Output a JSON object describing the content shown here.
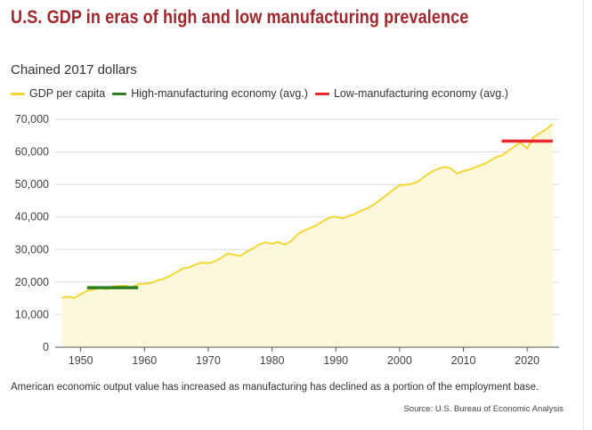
{
  "header": {
    "title": "U.S. GDP in eras of high and low manufacturing prevalence",
    "subtitle": "Chained 2017 dollars"
  },
  "legend": {
    "items": [
      {
        "label": "GDP per capita",
        "color": "#f5d733"
      },
      {
        "label": "High-manufacturing economy (avg.)",
        "color": "#2e7d1e"
      },
      {
        "label": "Low-manufacturing economy (avg.)",
        "color": "#e8282b"
      }
    ]
  },
  "footer": {
    "note": "American economic output value has increased as manufacturing has declined as a portion of the employment base.",
    "source": "Source: U.S. Bureau of Economic Analysis"
  },
  "chart_data": {
    "type": "area",
    "title": "U.S. GDP in eras of high and low manufacturing prevalence",
    "subtitle": "Chained 2017 dollars",
    "xlim": [
      1946,
      2025
    ],
    "ylim": [
      0,
      70000
    ],
    "x_ticks": [
      1950,
      1960,
      1970,
      1980,
      1990,
      2000,
      2010,
      2020
    ],
    "y_ticks": [
      0,
      10000,
      20000,
      30000,
      40000,
      50000,
      60000,
      70000
    ],
    "y_tick_labels": [
      "0",
      "10,000",
      "20,000",
      "30,000",
      "40,000",
      "50,000",
      "60,000",
      "70,000"
    ],
    "grid": "horizontal",
    "series": [
      {
        "name": "GDP per capita",
        "color": "#f5d733",
        "x": [
          1947,
          1948,
          1949,
          1950,
          1951,
          1952,
          1953,
          1954,
          1955,
          1956,
          1957,
          1958,
          1959,
          1960,
          1961,
          1962,
          1963,
          1964,
          1965,
          1966,
          1967,
          1968,
          1969,
          1970,
          1971,
          1972,
          1973,
          1974,
          1975,
          1976,
          1977,
          1978,
          1979,
          1980,
          1981,
          1982,
          1983,
          1984,
          1985,
          1986,
          1987,
          1988,
          1989,
          1990,
          1991,
          1992,
          1993,
          1994,
          1995,
          1996,
          1997,
          1998,
          1999,
          2000,
          2001,
          2002,
          2003,
          2004,
          2005,
          2006,
          2007,
          2008,
          2009,
          2010,
          2011,
          2012,
          2013,
          2014,
          2015,
          2016,
          2017,
          2018,
          2019,
          2020,
          2021,
          2022,
          2023,
          2024
        ],
        "y": [
          15200,
          15500,
          15100,
          16300,
          17300,
          17700,
          18200,
          17800,
          18700,
          18800,
          18900,
          18400,
          19400,
          19500,
          19700,
          20500,
          21000,
          21900,
          23000,
          24200,
          24500,
          25400,
          26000,
          25800,
          26300,
          27400,
          28800,
          28400,
          28000,
          29300,
          30300,
          31600,
          32200,
          31800,
          32300,
          31500,
          32600,
          34700,
          35800,
          36600,
          37500,
          38700,
          39800,
          40100,
          39500,
          40300,
          40900,
          42000,
          42700,
          43900,
          45300,
          46800,
          48400,
          49800,
          49900,
          50200,
          51000,
          52600,
          53900,
          54800,
          55400,
          55000,
          53300,
          54100,
          54600,
          55400,
          56100,
          57000,
          58300,
          58900,
          60200,
          61700,
          62800,
          61000,
          64500,
          65700,
          67000,
          68500
        ]
      },
      {
        "name": "High-manufacturing economy (avg.)",
        "color": "#2e7d1e",
        "x": [
          1951,
          1959
        ],
        "y": [
          18300,
          18300
        ]
      },
      {
        "name": "Low-manufacturing economy (avg.)",
        "color": "#e8282b",
        "x": [
          2016,
          2024
        ],
        "y": [
          63300,
          63300
        ]
      }
    ],
    "fill_color": "#fdf8dc"
  }
}
